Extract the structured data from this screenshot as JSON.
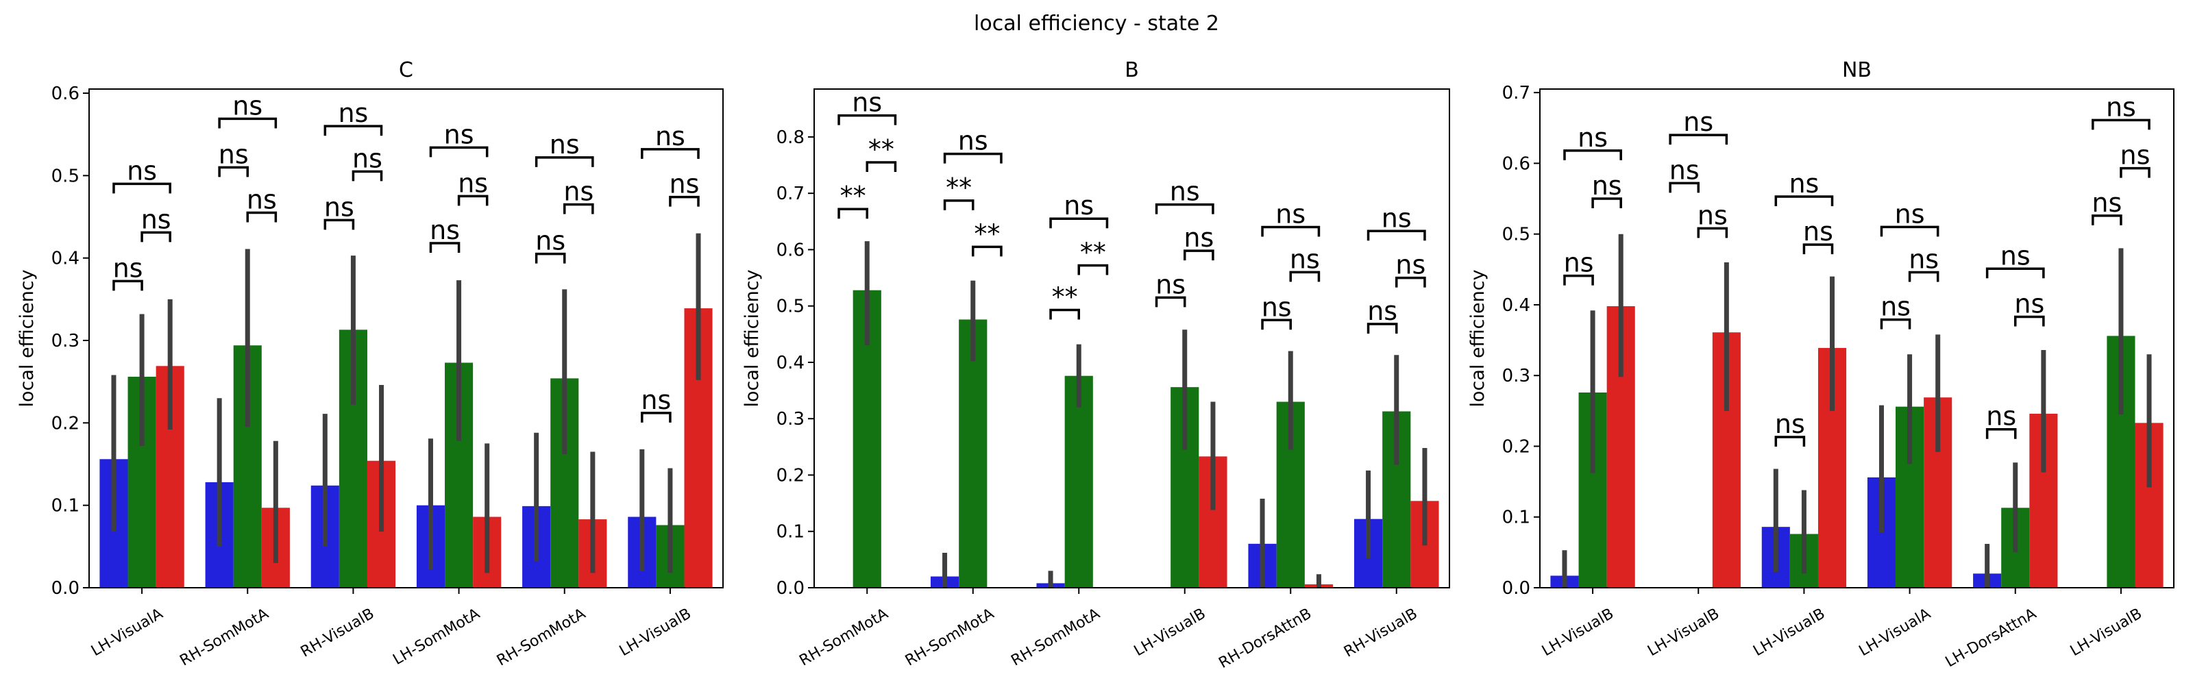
{
  "figure_title": "local efficiency - state 2",
  "colors": {
    "blue": "#2222dd",
    "green": "#137313",
    "red": "#dd2222",
    "err": "#3f3f3f"
  },
  "chart_data": [
    {
      "type": "bar",
      "title": "C",
      "ylabel": "local efficiency",
      "ylim": [
        0,
        0.605
      ],
      "yticks": [
        "0.0",
        "0.1",
        "0.2",
        "0.3",
        "0.4",
        "0.5",
        "0.6"
      ],
      "categories": [
        "LH-VisualA",
        "RH-SomMotA",
        "RH-VisualB",
        "LH-SomMotA",
        "RH-SomMotA",
        "LH-VisualB"
      ],
      "series": [
        {
          "color": "#2222dd",
          "values": [
            0.156,
            0.128,
            0.124,
            0.1,
            0.099,
            0.086
          ],
          "err_low": [
            0.068,
            0.05,
            0.05,
            0.022,
            0.032,
            0.02
          ],
          "err_high": [
            0.258,
            0.23,
            0.211,
            0.181,
            0.188,
            0.168
          ]
        },
        {
          "color": "#137313",
          "values": [
            0.256,
            0.294,
            0.313,
            0.273,
            0.254,
            0.076
          ],
          "err_low": [
            0.172,
            0.195,
            0.222,
            0.178,
            0.162,
            0.018
          ],
          "err_high": [
            0.332,
            0.411,
            0.403,
            0.373,
            0.362,
            0.145
          ]
        },
        {
          "color": "#dd2222",
          "values": [
            0.269,
            0.097,
            0.154,
            0.086,
            0.083,
            0.339
          ],
          "err_low": [
            0.192,
            0.03,
            0.068,
            0.018,
            0.018,
            0.252
          ],
          "err_high": [
            0.35,
            0.178,
            0.246,
            0.175,
            0.165,
            0.43
          ]
        }
      ],
      "annotations": [
        {
          "cat": 0,
          "a": 0,
          "b": 1,
          "y": 0.372,
          "label": "ns"
        },
        {
          "cat": 0,
          "a": 1,
          "b": 2,
          "y": 0.431,
          "label": "ns"
        },
        {
          "cat": 0,
          "a": 0,
          "b": 2,
          "y": 0.49,
          "label": "ns"
        },
        {
          "cat": 1,
          "a": 0,
          "b": 1,
          "y": 0.51,
          "label": "ns"
        },
        {
          "cat": 1,
          "a": 1,
          "b": 2,
          "y": 0.455,
          "label": "ns"
        },
        {
          "cat": 1,
          "a": 0,
          "b": 2,
          "y": 0.569,
          "label": "ns"
        },
        {
          "cat": 2,
          "a": 0,
          "b": 1,
          "y": 0.446,
          "label": "ns"
        },
        {
          "cat": 2,
          "a": 1,
          "b": 2,
          "y": 0.505,
          "label": "ns"
        },
        {
          "cat": 2,
          "a": 0,
          "b": 2,
          "y": 0.56,
          "label": "ns"
        },
        {
          "cat": 3,
          "a": 0,
          "b": 1,
          "y": 0.418,
          "label": "ns"
        },
        {
          "cat": 3,
          "a": 1,
          "b": 2,
          "y": 0.475,
          "label": "ns"
        },
        {
          "cat": 3,
          "a": 0,
          "b": 2,
          "y": 0.534,
          "label": "ns"
        },
        {
          "cat": 4,
          "a": 0,
          "b": 1,
          "y": 0.405,
          "label": "ns"
        },
        {
          "cat": 4,
          "a": 1,
          "b": 2,
          "y": 0.465,
          "label": "ns"
        },
        {
          "cat": 4,
          "a": 0,
          "b": 2,
          "y": 0.522,
          "label": "ns"
        },
        {
          "cat": 5,
          "a": 0,
          "b": 1,
          "y": 0.212,
          "label": "ns"
        },
        {
          "cat": 5,
          "a": 1,
          "b": 2,
          "y": 0.474,
          "label": "ns"
        },
        {
          "cat": 5,
          "a": 0,
          "b": 2,
          "y": 0.532,
          "label": "ns"
        }
      ]
    },
    {
      "type": "bar",
      "title": "B",
      "ylabel": "local efficiency",
      "ylim": [
        0,
        0.885
      ],
      "yticks": [
        "0.0",
        "0.1",
        "0.2",
        "0.3",
        "0.4",
        "0.5",
        "0.6",
        "0.7",
        "0.8"
      ],
      "categories": [
        "RH-SomMotA",
        "RH-SomMotA",
        "RH-SomMotA",
        "LH-VisualB",
        "RH-DorsAttnB",
        "RH-VisualB"
      ],
      "series": [
        {
          "color": "#2222dd",
          "values": [
            0.0,
            0.02,
            0.008,
            0.0,
            0.078,
            0.122
          ],
          "err_low": [
            0.0,
            0.0,
            0.0,
            0.0,
            0.0,
            0.052
          ],
          "err_high": [
            0.0,
            0.062,
            0.03,
            0.0,
            0.158,
            0.208
          ]
        },
        {
          "color": "#137313",
          "values": [
            0.528,
            0.476,
            0.376,
            0.356,
            0.33,
            0.313
          ],
          "err_low": [
            0.43,
            0.402,
            0.32,
            0.245,
            0.245,
            0.218
          ],
          "err_high": [
            0.615,
            0.545,
            0.432,
            0.458,
            0.42,
            0.413
          ]
        },
        {
          "color": "#dd2222",
          "values": [
            0.0,
            0.0,
            0.0,
            0.233,
            0.006,
            0.154
          ],
          "err_low": [
            0.0,
            0.0,
            0.0,
            0.138,
            0.0,
            0.075
          ],
          "err_high": [
            0.0,
            0.0,
            0.0,
            0.33,
            0.024,
            0.248
          ]
        }
      ],
      "annotations": [
        {
          "cat": 0,
          "a": 0,
          "b": 1,
          "y": 0.672,
          "label": "**"
        },
        {
          "cat": 0,
          "a": 1,
          "b": 2,
          "y": 0.755,
          "label": "**"
        },
        {
          "cat": 0,
          "a": 0,
          "b": 2,
          "y": 0.838,
          "label": "ns"
        },
        {
          "cat": 1,
          "a": 0,
          "b": 1,
          "y": 0.687,
          "label": "**"
        },
        {
          "cat": 1,
          "a": 1,
          "b": 2,
          "y": 0.605,
          "label": "**"
        },
        {
          "cat": 1,
          "a": 0,
          "b": 2,
          "y": 0.77,
          "label": "ns"
        },
        {
          "cat": 2,
          "a": 0,
          "b": 1,
          "y": 0.493,
          "label": "**"
        },
        {
          "cat": 2,
          "a": 1,
          "b": 2,
          "y": 0.572,
          "label": "**"
        },
        {
          "cat": 2,
          "a": 0,
          "b": 2,
          "y": 0.655,
          "label": "ns"
        },
        {
          "cat": 3,
          "a": 0,
          "b": 1,
          "y": 0.515,
          "label": "ns"
        },
        {
          "cat": 3,
          "a": 1,
          "b": 2,
          "y": 0.598,
          "label": "ns"
        },
        {
          "cat": 3,
          "a": 0,
          "b": 2,
          "y": 0.68,
          "label": "ns"
        },
        {
          "cat": 4,
          "a": 0,
          "b": 1,
          "y": 0.475,
          "label": "ns"
        },
        {
          "cat": 4,
          "a": 1,
          "b": 2,
          "y": 0.56,
          "label": "ns"
        },
        {
          "cat": 4,
          "a": 0,
          "b": 2,
          "y": 0.64,
          "label": "ns"
        },
        {
          "cat": 5,
          "a": 0,
          "b": 1,
          "y": 0.468,
          "label": "ns"
        },
        {
          "cat": 5,
          "a": 1,
          "b": 2,
          "y": 0.55,
          "label": "ns"
        },
        {
          "cat": 5,
          "a": 0,
          "b": 2,
          "y": 0.633,
          "label": "ns"
        }
      ]
    },
    {
      "type": "bar",
      "title": "NB",
      "ylabel": "local efficiency",
      "ylim": [
        0,
        0.705
      ],
      "yticks": [
        "0.0",
        "0.1",
        "0.2",
        "0.3",
        "0.4",
        "0.5",
        "0.6",
        "0.7"
      ],
      "categories": [
        "LH-VisualB",
        "LH-VisualB",
        "LH-VisualB",
        "LH-VisualA",
        "LH-DorsAttnA",
        "LH-VisualB"
      ],
      "series": [
        {
          "color": "#2222dd",
          "values": [
            0.017,
            0.0,
            0.086,
            0.156,
            0.02,
            0.0
          ],
          "err_low": [
            0.0,
            0.0,
            0.022,
            0.078,
            0.0,
            0.0
          ],
          "err_high": [
            0.053,
            0.0,
            0.168,
            0.258,
            0.062,
            0.0
          ]
        },
        {
          "color": "#137313",
          "values": [
            0.276,
            0.0,
            0.076,
            0.256,
            0.113,
            0.356
          ],
          "err_low": [
            0.162,
            0.0,
            0.02,
            0.175,
            0.05,
            0.245
          ],
          "err_high": [
            0.392,
            0.0,
            0.138,
            0.33,
            0.177,
            0.48
          ]
        },
        {
          "color": "#dd2222",
          "values": [
            0.398,
            0.361,
            0.339,
            0.269,
            0.246,
            0.233
          ],
          "err_low": [
            0.298,
            0.25,
            0.25,
            0.192,
            0.163,
            0.142
          ],
          "err_high": [
            0.5,
            0.46,
            0.44,
            0.358,
            0.336,
            0.33
          ]
        }
      ],
      "annotations": [
        {
          "cat": 0,
          "a": 0,
          "b": 1,
          "y": 0.441,
          "label": "ns"
        },
        {
          "cat": 0,
          "a": 1,
          "b": 2,
          "y": 0.55,
          "label": "ns"
        },
        {
          "cat": 0,
          "a": 0,
          "b": 2,
          "y": 0.618,
          "label": "ns"
        },
        {
          "cat": 1,
          "a": 0,
          "b": 1,
          "y": 0.572,
          "label": "ns"
        },
        {
          "cat": 1,
          "a": 1,
          "b": 2,
          "y": 0.508,
          "label": "ns"
        },
        {
          "cat": 1,
          "a": 0,
          "b": 2,
          "y": 0.64,
          "label": "ns"
        },
        {
          "cat": 2,
          "a": 0,
          "b": 1,
          "y": 0.213,
          "label": "ns"
        },
        {
          "cat": 2,
          "a": 1,
          "b": 2,
          "y": 0.485,
          "label": "ns"
        },
        {
          "cat": 2,
          "a": 0,
          "b": 2,
          "y": 0.553,
          "label": "ns"
        },
        {
          "cat": 3,
          "a": 0,
          "b": 1,
          "y": 0.379,
          "label": "ns"
        },
        {
          "cat": 3,
          "a": 1,
          "b": 2,
          "y": 0.446,
          "label": "ns"
        },
        {
          "cat": 3,
          "a": 0,
          "b": 2,
          "y": 0.51,
          "label": "ns"
        },
        {
          "cat": 4,
          "a": 0,
          "b": 1,
          "y": 0.224,
          "label": "ns"
        },
        {
          "cat": 4,
          "a": 1,
          "b": 2,
          "y": 0.383,
          "label": "ns"
        },
        {
          "cat": 4,
          "a": 0,
          "b": 2,
          "y": 0.451,
          "label": "ns"
        },
        {
          "cat": 5,
          "a": 0,
          "b": 1,
          "y": 0.526,
          "label": "ns"
        },
        {
          "cat": 5,
          "a": 1,
          "b": 2,
          "y": 0.593,
          "label": "ns"
        },
        {
          "cat": 5,
          "a": 0,
          "b": 2,
          "y": 0.661,
          "label": "ns"
        }
      ]
    }
  ]
}
